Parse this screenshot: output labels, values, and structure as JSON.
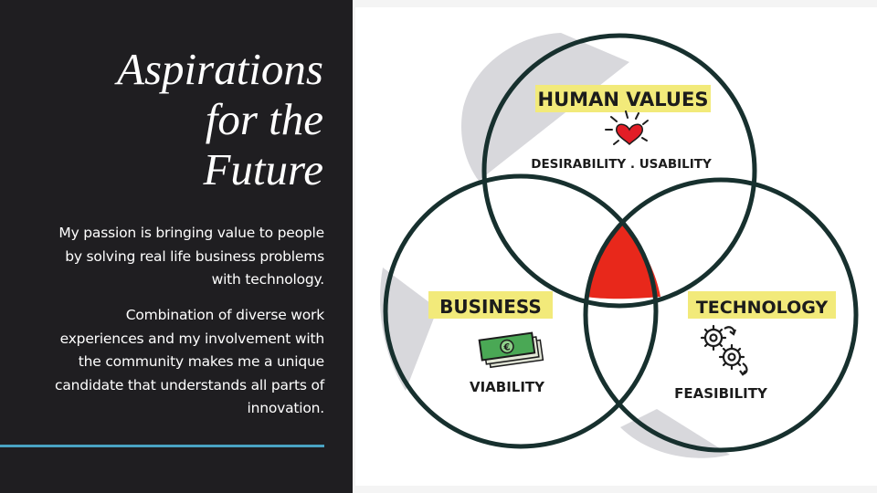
{
  "title": {
    "lines": [
      "Aspirations",
      "for the",
      "Future"
    ]
  },
  "paragraphs": [
    "My passion is bringing value to people by solving real life business problems with technology.",
    "Combination of diverse work experiences and my involvement with the community makes me a unique candidate that understands all parts of innovation."
  ],
  "venn": {
    "human": {
      "label": "HUMAN VALUES",
      "sub": "DESIRABILITY . USABILITY",
      "icon": "heart-icon"
    },
    "business": {
      "label": "BUSINESS",
      "sub": "VIABILITY",
      "icon": "money-icon"
    },
    "technology": {
      "label": "TECHNOLOGY",
      "sub": "FEASIBILITY",
      "icon": "gears-icon"
    }
  },
  "colors": {
    "panel": "#1f1e21",
    "accent_line": "#49a3c3",
    "highlight": "#f2ea7a",
    "center": "#e8281b",
    "heart": "#e21d26"
  }
}
